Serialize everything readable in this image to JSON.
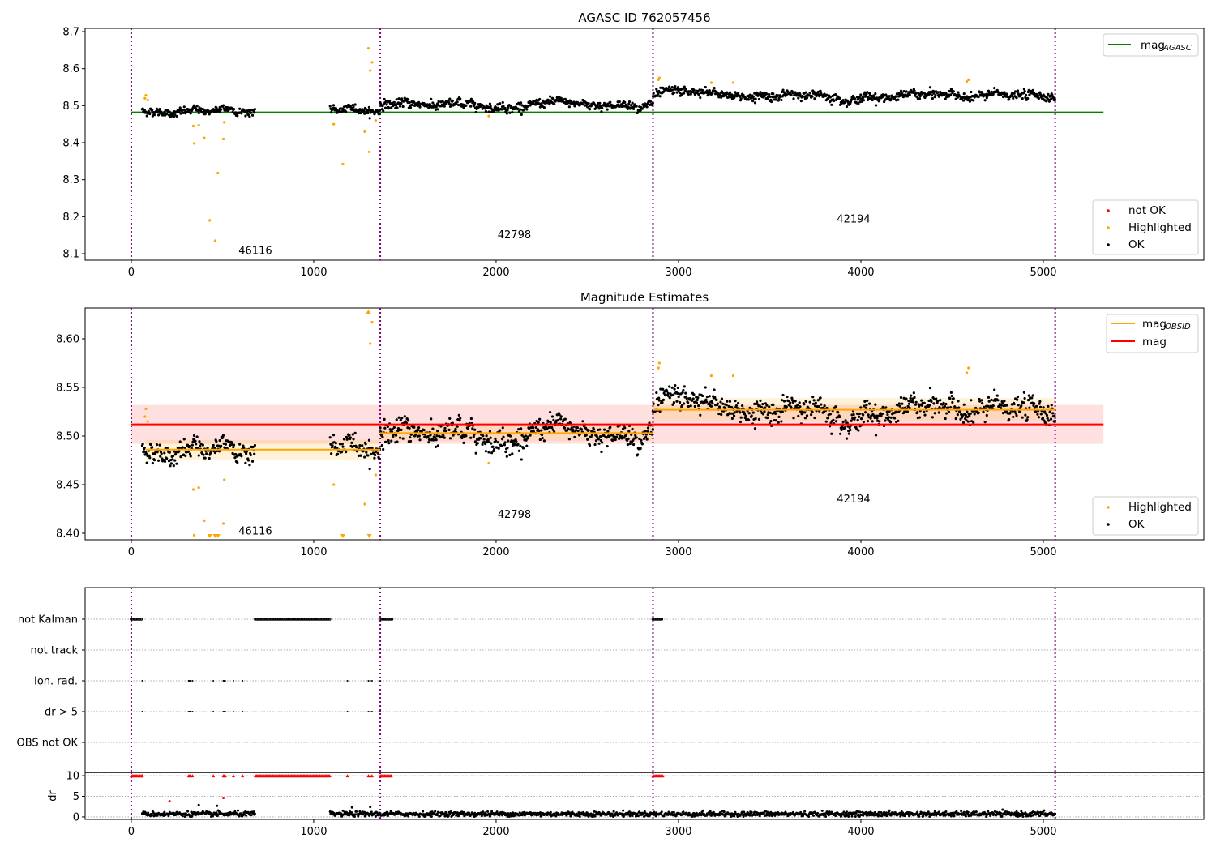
{
  "colors": {
    "ok": "#000000",
    "highlighted": "#ffa500",
    "not_ok": "#ff0000",
    "agasc": "#008000",
    "mag": "#ff0000",
    "obsid": "#ffa500",
    "obsid_boundary": "#800080"
  },
  "chart_data": [
    {
      "type": "scatter",
      "title": "AGASC ID 762057456",
      "xlim": [
        -253,
        5880
      ],
      "ylim": [
        8.0825,
        8.7088
      ],
      "yticks": [
        8.1,
        8.2,
        8.3,
        8.4,
        8.5,
        8.6,
        8.7
      ],
      "ytick_labels": [
        "8.1",
        "8.2",
        "8.3",
        "8.4",
        "8.5",
        "8.6",
        "8.7"
      ],
      "xticks": [
        0,
        1000,
        2000,
        3000,
        4000,
        5000
      ],
      "xtick_labels": [
        "0",
        "1000",
        "2000",
        "3000",
        "4000",
        "5000"
      ],
      "legend_top": {
        "label": "mag",
        "sub": "AGASC"
      },
      "legend_bottom": [
        "not OK",
        "Highlighted",
        "OK"
      ],
      "agasc_mag": 8.482,
      "agasc_range": [
        0,
        5330
      ],
      "obsid_labels": [
        {
          "text": "46116",
          "x": 680,
          "y": 8.11
        },
        {
          "text": "42798",
          "x": 2100,
          "y": 8.153
        },
        {
          "text": "42194",
          "x": 3960,
          "y": 8.195
        }
      ]
    },
    {
      "type": "scatter",
      "title": "Magnitude Estimates",
      "xlim": [
        -253,
        5880
      ],
      "ylim": [
        8.3933,
        8.6317
      ],
      "yticks": [
        8.4,
        8.45,
        8.5,
        8.55,
        8.6
      ],
      "ytick_labels": [
        "8.40",
        "8.45",
        "8.50",
        "8.55",
        "8.60"
      ],
      "xticks": [
        0,
        1000,
        2000,
        3000,
        4000,
        5000
      ],
      "xtick_labels": [
        "0",
        "1000",
        "2000",
        "3000",
        "4000",
        "5000"
      ],
      "legend_top": [
        {
          "label": "mag",
          "sub": "OBSID"
        },
        {
          "label": "mag",
          "sub": ""
        }
      ],
      "legend_bottom": [
        "Highlighted",
        "OK"
      ],
      "mag": 8.512,
      "mag_err": 0.02,
      "mag_range": [
        0,
        5330
      ],
      "obsid_labels": [
        {
          "text": "46116",
          "x": 680,
          "y": 8.403
        },
        {
          "text": "42798",
          "x": 2100,
          "y": 8.42
        },
        {
          "text": "42194",
          "x": 3960,
          "y": 8.436
        }
      ]
    },
    {
      "type": "scatter",
      "title": "",
      "categories": [
        "not Kalman",
        "not track",
        "Ion. rad.",
        "dr > 5",
        "OBS not OK"
      ],
      "flag_ranges": {
        "not Kalman": [
          [
            0,
            60
          ],
          [
            680,
            1090
          ],
          [
            1365,
            1430
          ],
          [
            2860,
            2915
          ]
        ]
      },
      "flag_points": {
        "Ion. rad.": [
          60,
          315,
          320,
          325,
          335,
          450,
          505,
          510,
          515,
          560,
          610,
          1185,
          1300,
          1310,
          1320,
          1365
        ],
        "dr > 5": [
          60,
          315,
          320,
          325,
          335,
          450,
          505,
          510,
          515,
          560,
          610,
          1185,
          1300,
          1310,
          1320,
          1365
        ]
      }
    },
    {
      "type": "scatter",
      "ylabel": "dr",
      "ylim": [
        -0.6,
        10.8
      ],
      "yticks": [
        0,
        5,
        10
      ],
      "ytick_labels": [
        "0",
        "5",
        "10"
      ],
      "xticks": [
        0,
        1000,
        2000,
        3000,
        4000,
        5000
      ],
      "xtick_labels": [
        "0",
        "1000",
        "2000",
        "3000",
        "4000",
        "5000"
      ],
      "dr_clip": 10,
      "dr_typical": 0.7,
      "dr_outliers": [
        [
          210,
          3.8
        ],
        [
          505,
          4.6
        ],
        [
          370,
          2.9
        ],
        [
          470,
          2.7
        ],
        [
          1210,
          2.3
        ],
        [
          1310,
          2.4
        ]
      ]
    }
  ],
  "segments": [
    {
      "obsid": "46116",
      "ranges": [
        [
          60,
          680
        ],
        [
          1090,
          1365
        ]
      ],
      "mean": 8.486,
      "std": 0.007,
      "err": 0.01
    },
    {
      "obsid": "42798",
      "ranges": [
        [
          1365,
          2860
        ]
      ],
      "mean": 8.503,
      "std": 0.008,
      "err": 0.008
    },
    {
      "obsid": "42194",
      "ranges": [
        [
          2860,
          5065
        ]
      ],
      "mean": 8.527,
      "std": 0.008,
      "err": 0.012
    }
  ],
  "obsid_boundaries": [
    0,
    1365,
    2860,
    5065
  ],
  "highlighted": [
    [
      75,
      8.52
    ],
    [
      80,
      8.528
    ],
    [
      90,
      8.515
    ],
    [
      340,
      8.445
    ],
    [
      345,
      8.398
    ],
    [
      370,
      8.447
    ],
    [
      400,
      8.413
    ],
    [
      430,
      8.19
    ],
    [
      460,
      8.135
    ],
    [
      475,
      8.318
    ],
    [
      505,
      8.41
    ],
    [
      510,
      8.455
    ],
    [
      1110,
      8.45
    ],
    [
      1160,
      8.342
    ],
    [
      1280,
      8.43
    ],
    [
      1300,
      8.655
    ],
    [
      1305,
      8.375
    ],
    [
      1310,
      8.595
    ],
    [
      1320,
      8.617
    ],
    [
      1340,
      8.46
    ],
    [
      1960,
      8.472
    ],
    [
      2890,
      8.57
    ],
    [
      2895,
      8.575
    ],
    [
      3180,
      8.562
    ],
    [
      3300,
      8.562
    ],
    [
      4580,
      8.565
    ],
    [
      4590,
      8.57
    ]
  ]
}
